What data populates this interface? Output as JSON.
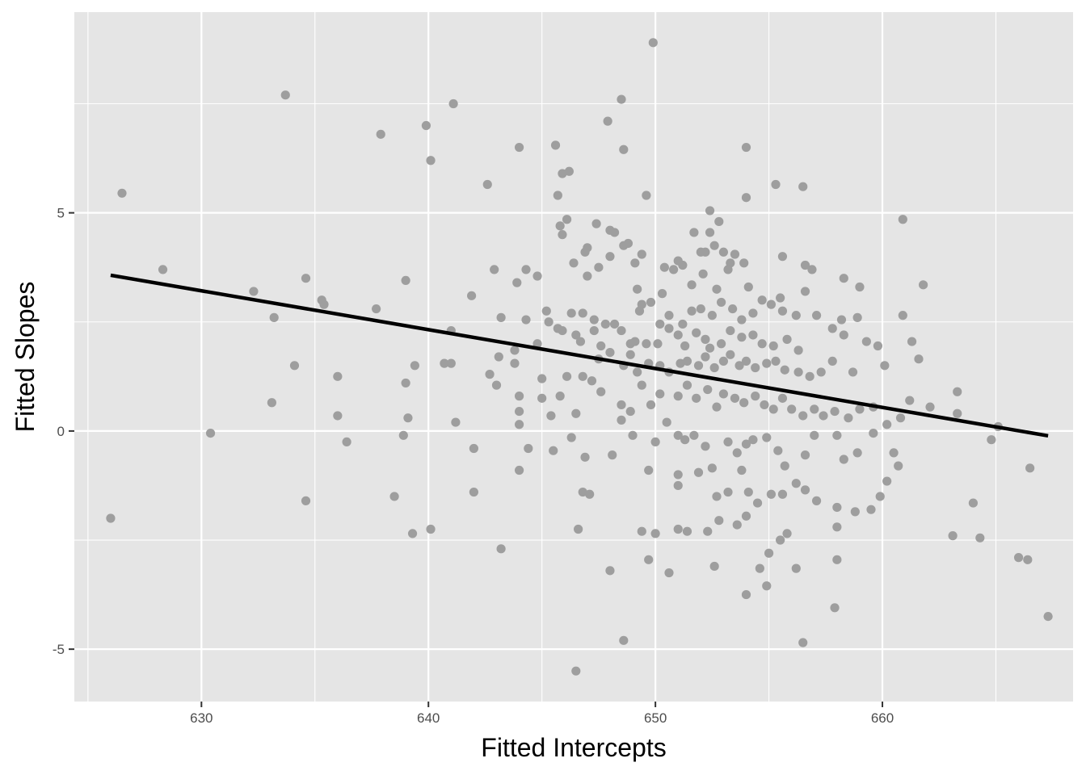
{
  "chart_data": {
    "type": "scatter",
    "xlabel": "Fitted Intercepts",
    "ylabel": "Fitted Slopes",
    "xlim": [
      624.4,
      668.4
    ],
    "ylim": [
      -6.2,
      9.6
    ],
    "x_ticks": [
      630,
      640,
      650,
      660
    ],
    "x_tick_labels": [
      "630",
      "640",
      "650",
      "660"
    ],
    "y_ticks": [
      -5,
      0,
      5
    ],
    "y_tick_labels": [
      "-5",
      "0",
      "5"
    ],
    "x_minor_ticks": [
      625,
      635,
      645,
      655,
      665
    ],
    "y_minor_ticks": [
      -2.5,
      2.5,
      7.5
    ],
    "grid": true,
    "colors": {
      "panel": "#e5e5e5",
      "grid": "#ffffff",
      "points": "#9e9e9e",
      "line": "#000000"
    },
    "fit_line": {
      "x": [
        626.0,
        667.3
      ],
      "y": [
        3.57,
        -0.11
      ]
    },
    "points": [
      [
        649.9,
        8.9
      ],
      [
        633.7,
        7.7
      ],
      [
        641.1,
        7.5
      ],
      [
        648.5,
        7.6
      ],
      [
        639.9,
        7.0
      ],
      [
        647.9,
        7.1
      ],
      [
        637.9,
        6.8
      ],
      [
        644.0,
        6.5
      ],
      [
        645.6,
        6.55
      ],
      [
        654.0,
        6.5
      ],
      [
        648.6,
        6.45
      ],
      [
        640.1,
        6.2
      ],
      [
        626.5,
        5.45
      ],
      [
        642.6,
        5.65
      ],
      [
        645.9,
        5.9
      ],
      [
        646.2,
        5.95
      ],
      [
        655.3,
        5.65
      ],
      [
        656.5,
        5.6
      ],
      [
        645.7,
        5.4
      ],
      [
        649.6,
        5.4
      ],
      [
        654.0,
        5.35
      ],
      [
        652.4,
        5.05
      ],
      [
        660.9,
        4.85
      ],
      [
        646.1,
        4.85
      ],
      [
        652.8,
        4.8
      ],
      [
        645.8,
        4.7
      ],
      [
        647.4,
        4.75
      ],
      [
        645.9,
        4.5
      ],
      [
        648.0,
        4.6
      ],
      [
        648.2,
        4.55
      ],
      [
        651.7,
        4.55
      ],
      [
        652.4,
        4.55
      ],
      [
        628.3,
        3.7
      ],
      [
        634.6,
        3.5
      ],
      [
        632.3,
        3.2
      ],
      [
        639.0,
        3.45
      ],
      [
        642.9,
        3.7
      ],
      [
        644.3,
        3.7
      ],
      [
        646.4,
        3.85
      ],
      [
        646.9,
        4.1
      ],
      [
        647.0,
        4.2
      ],
      [
        647.5,
        3.75
      ],
      [
        648.0,
        4.0
      ],
      [
        648.6,
        4.25
      ],
      [
        648.8,
        4.3
      ],
      [
        649.1,
        3.85
      ],
      [
        649.4,
        4.05
      ],
      [
        650.4,
        3.75
      ],
      [
        650.8,
        3.7
      ],
      [
        651.0,
        3.9
      ],
      [
        651.2,
        3.8
      ],
      [
        652.0,
        4.1
      ],
      [
        652.2,
        4.1
      ],
      [
        652.6,
        4.25
      ],
      [
        653.0,
        4.1
      ],
      [
        653.3,
        3.85
      ],
      [
        653.5,
        4.05
      ],
      [
        653.9,
        3.85
      ],
      [
        655.6,
        4.0
      ],
      [
        656.6,
        3.8
      ],
      [
        656.9,
        3.7
      ],
      [
        658.3,
        3.5
      ],
      [
        659.0,
        3.3
      ],
      [
        661.8,
        3.35
      ],
      [
        643.9,
        3.4
      ],
      [
        644.8,
        3.55
      ],
      [
        647.0,
        3.55
      ],
      [
        649.2,
        3.25
      ],
      [
        650.3,
        3.15
      ],
      [
        651.6,
        3.35
      ],
      [
        652.1,
        3.6
      ],
      [
        652.7,
        3.25
      ],
      [
        653.2,
        3.7
      ],
      [
        654.1,
        3.3
      ],
      [
        655.5,
        3.05
      ],
      [
        656.6,
        3.2
      ],
      [
        635.3,
        3.0
      ],
      [
        635.4,
        2.9
      ],
      [
        637.7,
        2.8
      ],
      [
        633.2,
        2.6
      ],
      [
        641.9,
        3.1
      ],
      [
        643.2,
        2.6
      ],
      [
        644.3,
        2.55
      ],
      [
        645.2,
        2.75
      ],
      [
        645.9,
        2.3
      ],
      [
        646.3,
        2.7
      ],
      [
        646.8,
        2.7
      ],
      [
        647.3,
        2.55
      ],
      [
        647.8,
        2.45
      ],
      [
        648.2,
        2.45
      ],
      [
        648.5,
        2.3
      ],
      [
        649.3,
        2.75
      ],
      [
        649.4,
        2.9
      ],
      [
        649.8,
        2.95
      ],
      [
        650.2,
        2.45
      ],
      [
        650.6,
        2.65
      ],
      [
        651.2,
        2.45
      ],
      [
        651.6,
        2.75
      ],
      [
        652.0,
        2.8
      ],
      [
        652.5,
        2.65
      ],
      [
        652.9,
        2.95
      ],
      [
        653.4,
        2.8
      ],
      [
        653.8,
        2.55
      ],
      [
        654.3,
        2.7
      ],
      [
        654.7,
        3.0
      ],
      [
        655.1,
        2.9
      ],
      [
        655.6,
        2.75
      ],
      [
        656.2,
        2.65
      ],
      [
        657.1,
        2.65
      ],
      [
        657.8,
        2.35
      ],
      [
        658.2,
        2.55
      ],
      [
        658.9,
        2.6
      ],
      [
        660.9,
        2.65
      ],
      [
        641.0,
        2.3
      ],
      [
        644.8,
        2.0
      ],
      [
        645.3,
        2.5
      ],
      [
        645.7,
        2.35
      ],
      [
        646.5,
        2.2
      ],
      [
        646.7,
        2.05
      ],
      [
        647.3,
        2.3
      ],
      [
        647.6,
        1.95
      ],
      [
        648.9,
        2.0
      ],
      [
        649.1,
        2.05
      ],
      [
        649.6,
        2.0
      ],
      [
        650.1,
        2.0
      ],
      [
        650.6,
        2.35
      ],
      [
        651.0,
        2.2
      ],
      [
        651.3,
        1.95
      ],
      [
        651.8,
        2.25
      ],
      [
        652.2,
        2.1
      ],
      [
        652.4,
        1.9
      ],
      [
        652.9,
        2.0
      ],
      [
        653.3,
        2.3
      ],
      [
        653.8,
        2.15
      ],
      [
        654.3,
        2.2
      ],
      [
        654.7,
        2.0
      ],
      [
        655.2,
        1.95
      ],
      [
        655.8,
        2.1
      ],
      [
        656.3,
        1.85
      ],
      [
        658.3,
        2.2
      ],
      [
        659.3,
        2.05
      ],
      [
        659.8,
        1.95
      ],
      [
        661.3,
        2.05
      ],
      [
        636.0,
        1.25
      ],
      [
        634.1,
        1.5
      ],
      [
        639.4,
        1.5
      ],
      [
        640.7,
        1.55
      ],
      [
        641.0,
        1.55
      ],
      [
        642.7,
        1.3
      ],
      [
        643.1,
        1.7
      ],
      [
        643.8,
        1.85
      ],
      [
        643.8,
        1.55
      ],
      [
        645.0,
        1.2
      ],
      [
        645.8,
        0.8
      ],
      [
        646.1,
        1.25
      ],
      [
        646.8,
        1.25
      ],
      [
        647.5,
        1.65
      ],
      [
        648.0,
        1.8
      ],
      [
        648.6,
        1.5
      ],
      [
        648.9,
        1.75
      ],
      [
        649.2,
        1.35
      ],
      [
        649.7,
        1.55
      ],
      [
        650.2,
        1.5
      ],
      [
        650.6,
        1.35
      ],
      [
        651.1,
        1.55
      ],
      [
        651.4,
        1.6
      ],
      [
        651.9,
        1.5
      ],
      [
        652.2,
        1.7
      ],
      [
        652.6,
        1.45
      ],
      [
        653.0,
        1.6
      ],
      [
        653.3,
        1.75
      ],
      [
        653.7,
        1.5
      ],
      [
        654.0,
        1.6
      ],
      [
        654.4,
        1.45
      ],
      [
        654.9,
        1.55
      ],
      [
        655.3,
        1.6
      ],
      [
        655.7,
        1.4
      ],
      [
        656.3,
        1.35
      ],
      [
        656.8,
        1.25
      ],
      [
        657.3,
        1.35
      ],
      [
        657.8,
        1.6
      ],
      [
        658.7,
        1.35
      ],
      [
        660.1,
        1.5
      ],
      [
        661.6,
        1.65
      ],
      [
        633.1,
        0.65
      ],
      [
        639.0,
        1.1
      ],
      [
        636.0,
        0.35
      ],
      [
        639.1,
        0.3
      ],
      [
        641.2,
        0.2
      ],
      [
        643.0,
        1.05
      ],
      [
        644.0,
        0.8
      ],
      [
        644.0,
        0.45
      ],
      [
        644.0,
        0.15
      ],
      [
        645.0,
        0.75
      ],
      [
        645.4,
        0.35
      ],
      [
        646.5,
        0.4
      ],
      [
        647.2,
        1.15
      ],
      [
        647.6,
        0.9
      ],
      [
        648.5,
        0.6
      ],
      [
        648.5,
        0.25
      ],
      [
        648.9,
        0.45
      ],
      [
        649.4,
        1.05
      ],
      [
        649.8,
        0.6
      ],
      [
        650.2,
        0.85
      ],
      [
        650.5,
        0.2
      ],
      [
        651.0,
        0.8
      ],
      [
        651.4,
        1.05
      ],
      [
        651.8,
        0.75
      ],
      [
        652.3,
        0.95
      ],
      [
        652.7,
        0.55
      ],
      [
        653.0,
        0.85
      ],
      [
        653.5,
        0.75
      ],
      [
        653.9,
        0.65
      ],
      [
        654.4,
        0.8
      ],
      [
        654.8,
        0.6
      ],
      [
        655.2,
        0.5
      ],
      [
        655.6,
        0.75
      ],
      [
        656.0,
        0.5
      ],
      [
        656.5,
        0.35
      ],
      [
        657.0,
        0.5
      ],
      [
        657.4,
        0.35
      ],
      [
        657.9,
        0.45
      ],
      [
        658.5,
        0.3
      ],
      [
        659.0,
        0.5
      ],
      [
        659.6,
        0.55
      ],
      [
        660.2,
        0.15
      ],
      [
        660.8,
        0.3
      ],
      [
        661.2,
        0.7
      ],
      [
        662.1,
        0.55
      ],
      [
        663.3,
        0.4
      ],
      [
        663.3,
        0.9
      ],
      [
        665.1,
        0.1
      ],
      [
        630.4,
        -0.05
      ],
      [
        636.4,
        -0.25
      ],
      [
        638.9,
        -0.1
      ],
      [
        642.0,
        -0.4
      ],
      [
        644.4,
        -0.4
      ],
      [
        645.5,
        -0.45
      ],
      [
        646.3,
        -0.15
      ],
      [
        646.9,
        -0.6
      ],
      [
        648.1,
        -0.55
      ],
      [
        649.0,
        -0.1
      ],
      [
        650.0,
        -0.25
      ],
      [
        651.0,
        -0.1
      ],
      [
        651.3,
        -0.2
      ],
      [
        651.7,
        -0.1
      ],
      [
        652.2,
        -0.35
      ],
      [
        652.5,
        -0.85
      ],
      [
        653.2,
        -0.25
      ],
      [
        653.6,
        -0.5
      ],
      [
        654.0,
        -0.3
      ],
      [
        654.3,
        -0.2
      ],
      [
        654.9,
        -0.15
      ],
      [
        655.4,
        -0.45
      ],
      [
        655.7,
        -0.8
      ],
      [
        656.6,
        -0.55
      ],
      [
        657.0,
        -0.1
      ],
      [
        658.0,
        -0.1
      ],
      [
        658.3,
        -0.65
      ],
      [
        658.9,
        -0.5
      ],
      [
        659.6,
        -0.05
      ],
      [
        660.5,
        -0.5
      ],
      [
        660.7,
        -0.8
      ],
      [
        664.8,
        -0.2
      ],
      [
        634.6,
        -1.6
      ],
      [
        642.0,
        -1.4
      ],
      [
        638.5,
        -1.5
      ],
      [
        644.0,
        -0.9
      ],
      [
        646.8,
        -1.4
      ],
      [
        647.1,
        -1.45
      ],
      [
        649.7,
        -0.9
      ],
      [
        651.0,
        -1.25
      ],
      [
        651.0,
        -1.0
      ],
      [
        651.9,
        -0.95
      ],
      [
        652.7,
        -1.5
      ],
      [
        653.2,
        -1.4
      ],
      [
        653.8,
        -0.9
      ],
      [
        654.1,
        -1.4
      ],
      [
        654.5,
        -1.65
      ],
      [
        655.1,
        -1.45
      ],
      [
        655.6,
        -1.45
      ],
      [
        656.2,
        -1.2
      ],
      [
        656.6,
        -1.35
      ],
      [
        657.1,
        -1.6
      ],
      [
        658.0,
        -1.75
      ],
      [
        658.8,
        -1.85
      ],
      [
        659.5,
        -1.8
      ],
      [
        659.9,
        -1.5
      ],
      [
        660.2,
        -1.15
      ],
      [
        664.0,
        -1.65
      ],
      [
        666.5,
        -0.85
      ],
      [
        626.0,
        -2.0
      ],
      [
        639.3,
        -2.35
      ],
      [
        640.1,
        -2.25
      ],
      [
        643.2,
        -2.7
      ],
      [
        646.6,
        -2.25
      ],
      [
        649.4,
        -2.3
      ],
      [
        650.0,
        -2.35
      ],
      [
        651.0,
        -2.25
      ],
      [
        651.4,
        -2.3
      ],
      [
        652.3,
        -2.3
      ],
      [
        652.8,
        -2.05
      ],
      [
        653.6,
        -2.15
      ],
      [
        654.0,
        -1.95
      ],
      [
        655.5,
        -2.5
      ],
      [
        655.8,
        -2.35
      ],
      [
        658.0,
        -2.2
      ],
      [
        663.1,
        -2.4
      ],
      [
        664.3,
        -2.45
      ],
      [
        649.7,
        -2.95
      ],
      [
        648.0,
        -3.2
      ],
      [
        650.6,
        -3.25
      ],
      [
        652.6,
        -3.1
      ],
      [
        654.6,
        -3.15
      ],
      [
        655.0,
        -2.8
      ],
      [
        656.2,
        -3.15
      ],
      [
        658.0,
        -2.95
      ],
      [
        666.0,
        -2.9
      ],
      [
        666.4,
        -2.95
      ],
      [
        654.0,
        -3.75
      ],
      [
        654.9,
        -3.55
      ],
      [
        657.9,
        -4.05
      ],
      [
        667.3,
        -4.25
      ],
      [
        648.6,
        -4.8
      ],
      [
        656.5,
        -4.85
      ],
      [
        646.5,
        -5.5
      ]
    ]
  }
}
